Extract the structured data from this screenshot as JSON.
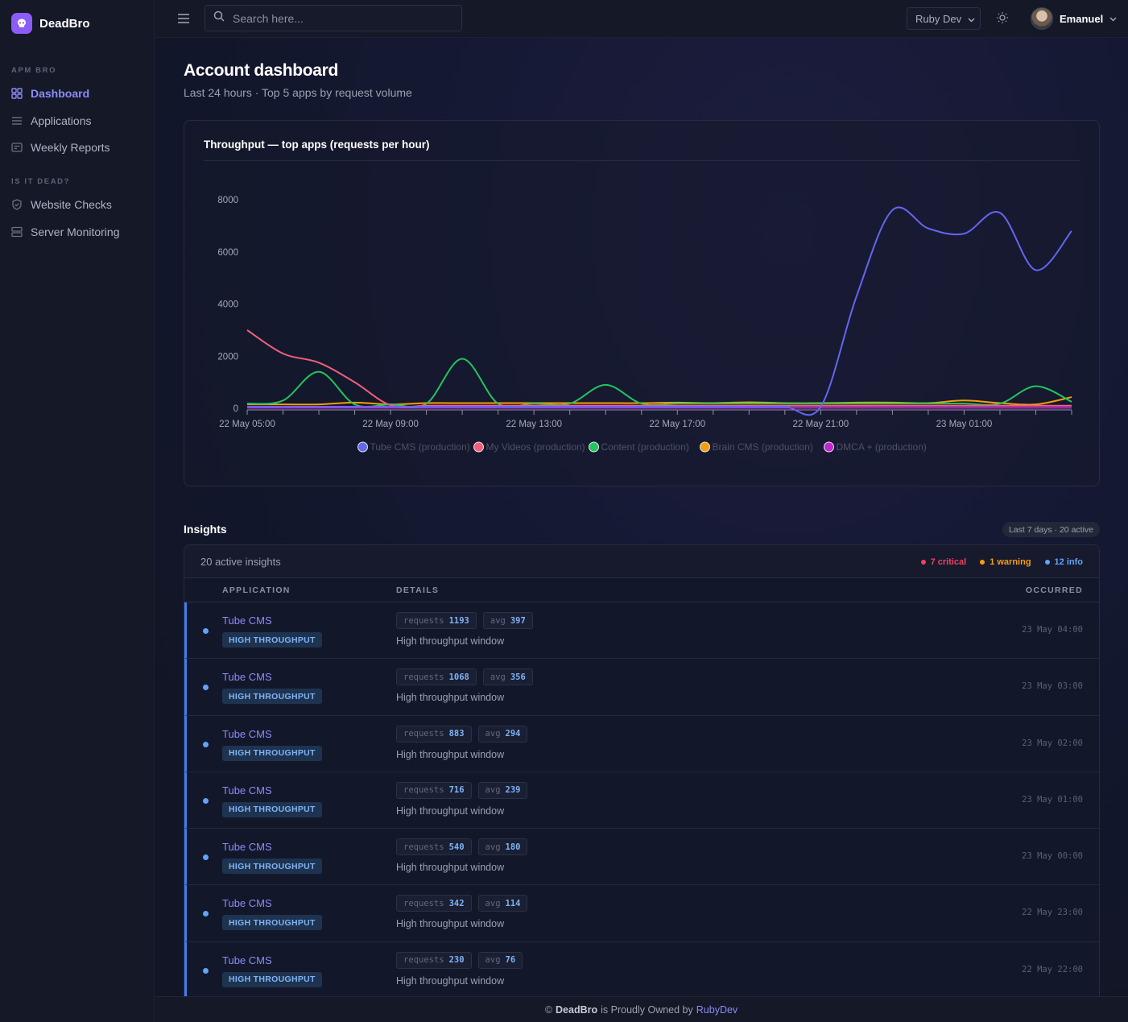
{
  "brand": {
    "name": "DeadBro"
  },
  "sidebar": {
    "sections": [
      {
        "title": "APM BRO",
        "items": [
          {
            "label": "Dashboard",
            "icon": "grid-icon",
            "active": true
          },
          {
            "label": "Applications",
            "icon": "list-icon"
          },
          {
            "label": "Weekly Reports",
            "icon": "report-icon"
          }
        ]
      },
      {
        "title": "IS IT DEAD?",
        "items": [
          {
            "label": "Website Checks",
            "icon": "shield-icon"
          },
          {
            "label": "Server Monitoring",
            "icon": "server-icon"
          }
        ]
      }
    ]
  },
  "header": {
    "search_placeholder": "Search here...",
    "team": "Ruby Dev",
    "user": "Emanuel"
  },
  "page": {
    "title": "Account dashboard",
    "subtitle": "Last 24 hours · Top 5 apps by request volume"
  },
  "chart_title": "Throughput — top apps (requests per hour)",
  "chart_data": {
    "type": "line",
    "title": "Throughput — top apps (requests per hour)",
    "xlabel": "",
    "ylabel": "",
    "ylim": [
      0,
      8000
    ],
    "yticks": [
      0,
      2000,
      4000,
      6000,
      8000
    ],
    "x": [
      "22 May 05:00",
      "22 May 06:00",
      "22 May 07:00",
      "22 May 08:00",
      "22 May 09:00",
      "22 May 10:00",
      "22 May 11:00",
      "22 May 12:00",
      "22 May 13:00",
      "22 May 14:00",
      "22 May 15:00",
      "22 May 16:00",
      "22 May 17:00",
      "22 May 18:00",
      "22 May 19:00",
      "22 May 20:00",
      "22 May 21:00",
      "22 May 22:00",
      "22 May 23:00",
      "23 May 00:00",
      "23 May 01:00",
      "23 May 02:00",
      "23 May 03:00",
      "23 May 04:00"
    ],
    "xtick_labels": [
      "22 May 05:00",
      "22 May 09:00",
      "22 May 13:00",
      "22 May 17:00",
      "22 May 21:00",
      "23 May 01:00"
    ],
    "legend_position": "bottom",
    "grid": false,
    "series": [
      {
        "name": "Tube CMS (production)",
        "color": "#6366f1",
        "values": [
          60,
          60,
          60,
          60,
          60,
          60,
          60,
          60,
          60,
          60,
          60,
          60,
          60,
          60,
          60,
          60,
          60,
          4300,
          7600,
          6900,
          6700,
          7500,
          5300,
          6800
        ]
      },
      {
        "name": "My Videos (production)",
        "color": "#f0607c",
        "values": [
          3000,
          2100,
          1750,
          1000,
          120,
          100,
          100,
          100,
          100,
          100,
          100,
          100,
          100,
          100,
          100,
          100,
          100,
          100,
          100,
          100,
          100,
          100,
          100,
          100
        ]
      },
      {
        "name": "Content (production)",
        "color": "#22c55e",
        "values": [
          180,
          300,
          1400,
          150,
          150,
          180,
          1900,
          180,
          180,
          180,
          900,
          180,
          180,
          180,
          180,
          180,
          180,
          180,
          180,
          180,
          180,
          180,
          850,
          250
        ]
      },
      {
        "name": "Brain CMS (production)",
        "color": "#f59e0b",
        "values": [
          150,
          150,
          150,
          220,
          150,
          200,
          200,
          200,
          200,
          200,
          200,
          200,
          220,
          200,
          230,
          200,
          200,
          220,
          220,
          200,
          300,
          200,
          150,
          430
        ]
      },
      {
        "name": "DMCA + (production)",
        "color": "#c026d3",
        "values": [
          20,
          20,
          20,
          20,
          20,
          20,
          20,
          20,
          20,
          20,
          20,
          20,
          20,
          20,
          20,
          20,
          20,
          20,
          20,
          20,
          20,
          20,
          20,
          20
        ]
      }
    ]
  },
  "insights": {
    "title": "Insights",
    "range_pill": "Last 7 days · 20 active",
    "count_label": "20 active insights",
    "tallies": [
      {
        "label": "7 critical",
        "color": "#f43f5e"
      },
      {
        "label": "1 warning",
        "color": "#f59e0b"
      },
      {
        "label": "12 info",
        "color": "#60a5fa"
      }
    ],
    "columns": {
      "application": "APPLICATION",
      "details": "DETAILS",
      "occurred": "OCCURRED"
    },
    "rows": [
      {
        "app": "Tube CMS",
        "tag": "HIGH THROUGHPUT",
        "req_label": "requests",
        "requests": "1193",
        "avg_label": "avg",
        "avg": "397",
        "desc": "High throughput window",
        "when": "23 May 04:00"
      },
      {
        "app": "Tube CMS",
        "tag": "HIGH THROUGHPUT",
        "req_label": "requests",
        "requests": "1068",
        "avg_label": "avg",
        "avg": "356",
        "desc": "High throughput window",
        "when": "23 May 03:00"
      },
      {
        "app": "Tube CMS",
        "tag": "HIGH THROUGHPUT",
        "req_label": "requests",
        "requests": "883",
        "avg_label": "avg",
        "avg": "294",
        "desc": "High throughput window",
        "when": "23 May 02:00"
      },
      {
        "app": "Tube CMS",
        "tag": "HIGH THROUGHPUT",
        "req_label": "requests",
        "requests": "716",
        "avg_label": "avg",
        "avg": "239",
        "desc": "High throughput window",
        "when": "23 May 01:00"
      },
      {
        "app": "Tube CMS",
        "tag": "HIGH THROUGHPUT",
        "req_label": "requests",
        "requests": "540",
        "avg_label": "avg",
        "avg": "180",
        "desc": "High throughput window",
        "when": "23 May 00:00"
      },
      {
        "app": "Tube CMS",
        "tag": "HIGH THROUGHPUT",
        "req_label": "requests",
        "requests": "342",
        "avg_label": "avg",
        "avg": "114",
        "desc": "High throughput window",
        "when": "22 May 23:00"
      },
      {
        "app": "Tube CMS",
        "tag": "HIGH THROUGHPUT",
        "req_label": "requests",
        "requests": "230",
        "avg_label": "avg",
        "avg": "76",
        "desc": "High throughput window",
        "when": "22 May 22:00"
      }
    ]
  },
  "footer": {
    "prefix": "©",
    "brand": "DeadBro",
    "middle": "is Proudly Owned by",
    "owner": "RubyDev"
  }
}
